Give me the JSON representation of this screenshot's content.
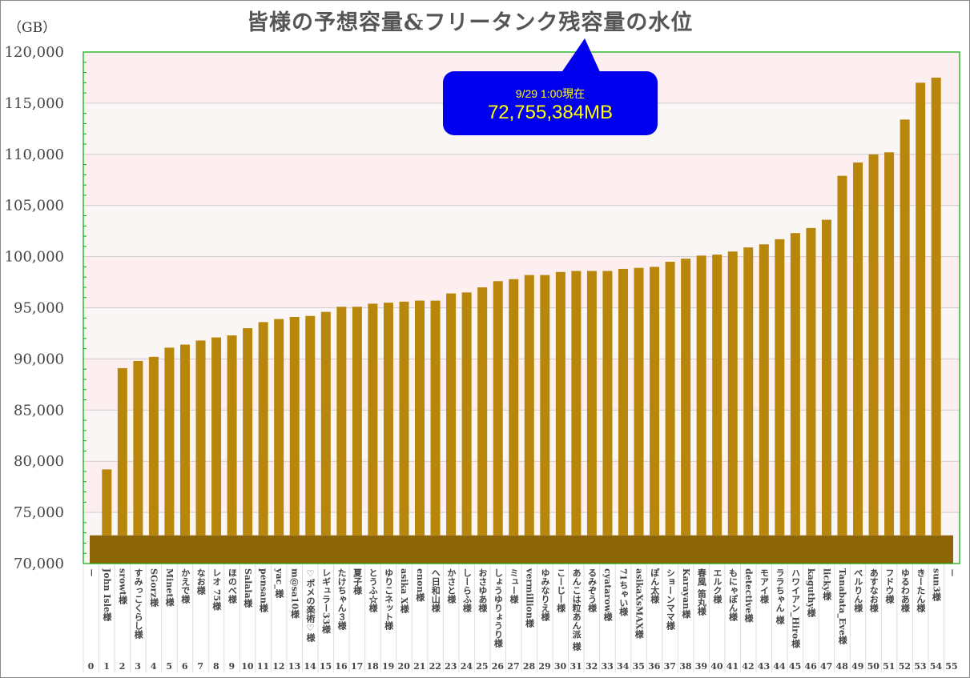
{
  "chart_data": {
    "type": "bar",
    "title": "皆様の予想容量&フリータンク残容量の水位",
    "ylabel": "（GB）",
    "ylim": [
      70000,
      120000
    ],
    "yticks": [
      "70,000",
      "75,000",
      "80,000",
      "85,000",
      "90,000",
      "95,000",
      "100,000",
      "105,000",
      "110,000",
      "115,000",
      "120,000"
    ],
    "grid": true,
    "legend": "none",
    "bar_color": "#b8860b",
    "baseline_color": "#8b6508",
    "plot_border_color": "#00aa00",
    "numbers": [
      "0",
      "1",
      "2",
      "3",
      "4",
      "5",
      "6",
      "7",
      "8",
      "9",
      "10",
      "11",
      "12",
      "13",
      "14",
      "15",
      "16",
      "17",
      "18",
      "19",
      "20",
      "21",
      "22",
      "23",
      "24",
      "25",
      "26",
      "27",
      "28",
      "29",
      "30",
      "31",
      "32",
      "33",
      "34",
      "35",
      "36",
      "37",
      "38",
      "39",
      "40",
      "41",
      "42",
      "43",
      "44",
      "45",
      "46",
      "47",
      "48",
      "49",
      "50",
      "51",
      "52",
      "53",
      "54",
      "55"
    ],
    "categories": [
      "－",
      "John Isle様",
      "srowt様",
      "すみっこくらし様",
      "SGorz様",
      "Minet様",
      "かえで様",
      "なお様",
      "レオ 75様",
      "ほのべ様",
      "Salala様",
      "pensan様",
      "yac_様",
      "m@sa10様",
      "♡ポメの楽術♡様",
      "レギュラー33様",
      "たけちゃん３様",
      "夏子様",
      "とうふ☆様",
      "ゆりこネット様",
      "asika X様",
      "enon様",
      "ヘ日和山様",
      "かさと様",
      "しーらふ様",
      "おさゆあ様",
      "しょうゆりょうり様",
      "ミュー様",
      "vermillion様",
      "ゆみなりえ様",
      "こーじー様",
      "あんこは粒あん派 様",
      "るみぞう様",
      "cyatarow様",
      "71ちゃい様",
      "asikaXsMAX様",
      "ぽん太様",
      "ショーンママ様",
      "Karayan様",
      "春風 笛丸様",
      "エルク様",
      "もにゃぽん様",
      "detective様",
      "モアイ様",
      "ララちゃん 様",
      "ハワイアン_Hiro様",
      "kaguthy様",
      "licky様",
      "Tanabata_Eve様",
      "ぺルりん様",
      "あすなお様",
      "フドウ様",
      "ゆるわあ様",
      "きーたん様",
      "sun3様",
      "－"
    ],
    "values": [
      null,
      79200,
      89100,
      89800,
      90200,
      91100,
      91400,
      91800,
      92100,
      92300,
      93000,
      93600,
      93900,
      94100,
      94200,
      94600,
      95100,
      95100,
      95400,
      95500,
      95600,
      95700,
      95700,
      96400,
      96500,
      97000,
      97600,
      97800,
      98200,
      98200,
      98500,
      98600,
      98600,
      98600,
      98800,
      98900,
      99000,
      99500,
      99800,
      100100,
      100200,
      100500,
      100900,
      101200,
      101700,
      102300,
      102800,
      103600,
      107900,
      109200,
      110000,
      110200,
      113400,
      117000,
      117500,
      null
    ],
    "baseline_value": 72755,
    "annotation": {
      "date": "9/29 1:00現在",
      "value": "72,755,384MB"
    }
  }
}
